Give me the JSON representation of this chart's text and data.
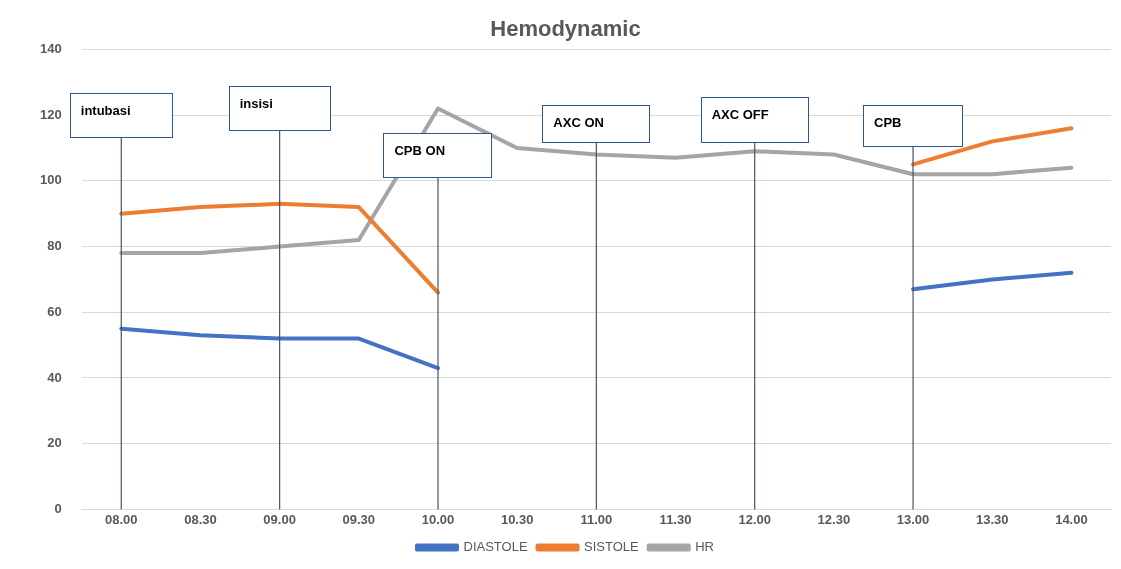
{
  "chart_data": {
    "type": "line",
    "title": "Hemodynamic",
    "categories": [
      "08.00",
      "08.30",
      "09.00",
      "09.30",
      "10.00",
      "10.30",
      "11.00",
      "11.30",
      "12.00",
      "12.30",
      "13.00",
      "13.30",
      "14.00"
    ],
    "ylim": [
      0,
      140
    ],
    "yticks": [
      0,
      20,
      40,
      60,
      80,
      100,
      120,
      140
    ],
    "grid": "y",
    "legend": "bottom",
    "marker": "none",
    "line_style": "solid",
    "series": [
      {
        "name": "DIASTOLE",
        "color": "#4472c4",
        "values": [
          55,
          53,
          52,
          52,
          43,
          null,
          null,
          null,
          null,
          null,
          67,
          70,
          72
        ]
      },
      {
        "name": "SISTOLE",
        "color": "#ed7d31",
        "values": [
          90,
          92,
          93,
          92,
          66,
          null,
          null,
          null,
          null,
          null,
          105,
          112,
          116
        ]
      },
      {
        "name": "HR",
        "color": "#a5a5a5",
        "values": [
          78,
          78,
          80,
          82,
          122,
          110,
          108,
          107,
          109,
          108,
          102,
          102,
          104
        ]
      }
    ],
    "ref_lines": [
      {
        "axis": "x",
        "value": "08.00",
        "label": "intubasi",
        "color": "#44546a"
      },
      {
        "axis": "x",
        "value": "09.00",
        "label": "insisi",
        "color": "#44546a"
      },
      {
        "axis": "x",
        "value": "10.00",
        "label": "CPB ON",
        "color": "#44546a"
      },
      {
        "axis": "x",
        "value": "11.00",
        "label": "AXC ON",
        "color": "#44546a"
      },
      {
        "axis": "x",
        "value": "12.00",
        "label": "AXC OFF",
        "color": "#44546a"
      },
      {
        "axis": "x",
        "value": "13.00",
        "label": "CPB",
        "color": "#44546a"
      }
    ]
  }
}
